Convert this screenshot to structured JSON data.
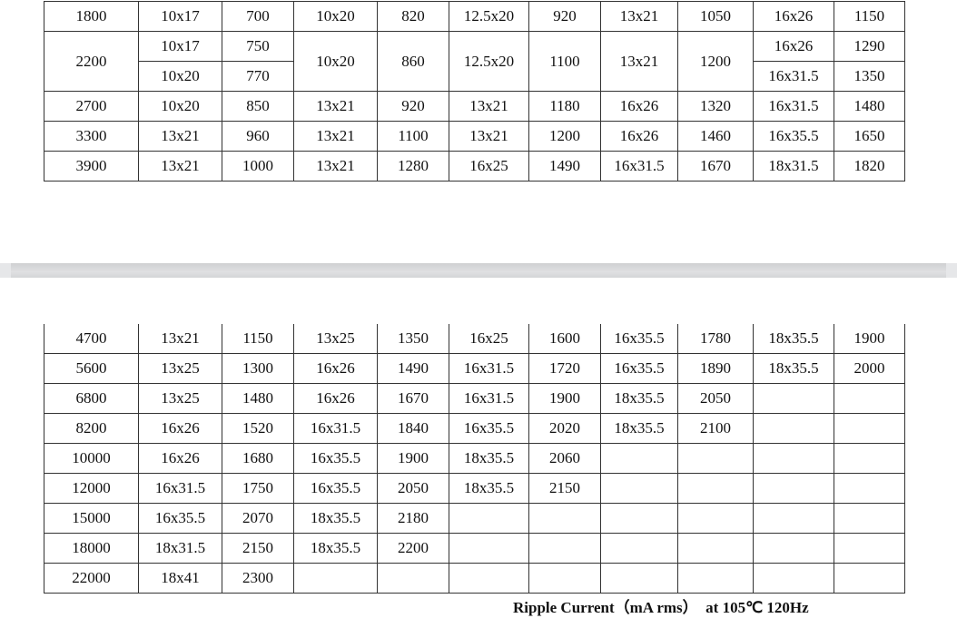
{
  "top_table": {
    "rows": [
      [
        "1800",
        "10x17",
        "700",
        "10x20",
        "820",
        "12.5x20",
        "920",
        "13x21",
        "1050",
        "16x26",
        "1150"
      ],
      [
        "2700",
        "10x20",
        "850",
        "13x21",
        "920",
        "13x21",
        "1180",
        "16x26",
        "1320",
        "16x31.5",
        "1480"
      ],
      [
        "3300",
        "13x21",
        "960",
        "13x21",
        "1100",
        "13x21",
        "1200",
        "16x26",
        "1460",
        "16x35.5",
        "1650"
      ],
      [
        "3900",
        "13x21",
        "1000",
        "13x21",
        "1280",
        "16x25",
        "1490",
        "16x31.5",
        "1670",
        "18x31.5",
        "1820"
      ]
    ],
    "split_row": {
      "cap": "2200",
      "a_size": "10x17",
      "a_ripple": "750",
      "b_size": "10x20",
      "b_ripple": "770",
      "c3": "10x20",
      "c4": "860",
      "c5": "12.5x20",
      "c6": "1100",
      "c7": "13x21",
      "c8": "1200",
      "a9": "16x26",
      "a10": "1290",
      "b9": "16x31.5",
      "b10": "1350"
    }
  },
  "bottom_table": {
    "rows": [
      [
        "4700",
        "13x21",
        "1150",
        "13x25",
        "1350",
        "16x25",
        "1600",
        "16x35.5",
        "1780",
        "18x35.5",
        "1900"
      ],
      [
        "5600",
        "13x25",
        "1300",
        "16x26",
        "1490",
        "16x31.5",
        "1720",
        "16x35.5",
        "1890",
        "18x35.5",
        "2000"
      ],
      [
        "6800",
        "13x25",
        "1480",
        "16x26",
        "1670",
        "16x31.5",
        "1900",
        "18x35.5",
        "2050",
        "",
        ""
      ],
      [
        "8200",
        "16x26",
        "1520",
        "16x31.5",
        "1840",
        "16x35.5",
        "2020",
        "18x35.5",
        "2100",
        "",
        ""
      ],
      [
        "10000",
        "16x26",
        "1680",
        "16x35.5",
        "1900",
        "18x35.5",
        "2060",
        "",
        "",
        "",
        ""
      ],
      [
        "12000",
        "16x31.5",
        "1750",
        "16x35.5",
        "2050",
        "18x35.5",
        "2150",
        "",
        "",
        "",
        ""
      ],
      [
        "15000",
        "16x35.5",
        "2070",
        "18x35.5",
        "2180",
        "",
        "",
        "",
        "",
        "",
        ""
      ],
      [
        "18000",
        "18x31.5",
        "2150",
        "18x35.5",
        "2200",
        "",
        "",
        "",
        "",
        "",
        ""
      ],
      [
        "22000",
        "18x41",
        "2300",
        "",
        "",
        "",
        "",
        "",
        "",
        "",
        ""
      ]
    ]
  },
  "caption": "Ripple Current（mA rms）  at 105℃ 120Hz"
}
